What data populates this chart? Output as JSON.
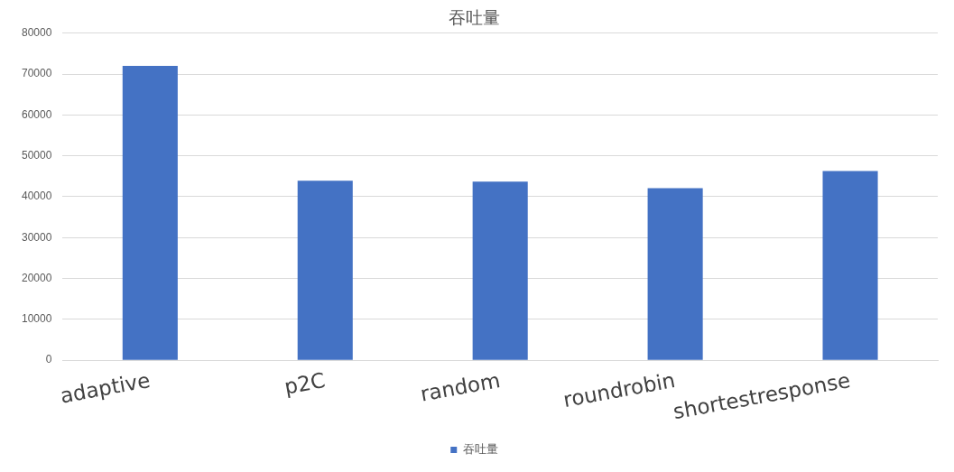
{
  "chart_data": {
    "type": "bar",
    "title": "吞吐量",
    "categories": [
      "adaptive",
      "p2C",
      "random",
      "roundrobin",
      "shortestresponse"
    ],
    "series": [
      {
        "name": "吞吐量",
        "color": "#4472c4",
        "values": [
          72000,
          43900,
          43700,
          42100,
          46300
        ]
      }
    ],
    "ylim": [
      0,
      80000
    ],
    "yticks": [
      0,
      10000,
      20000,
      30000,
      40000,
      50000,
      60000,
      70000,
      80000
    ],
    "grid": "y",
    "legend": "bottom"
  }
}
